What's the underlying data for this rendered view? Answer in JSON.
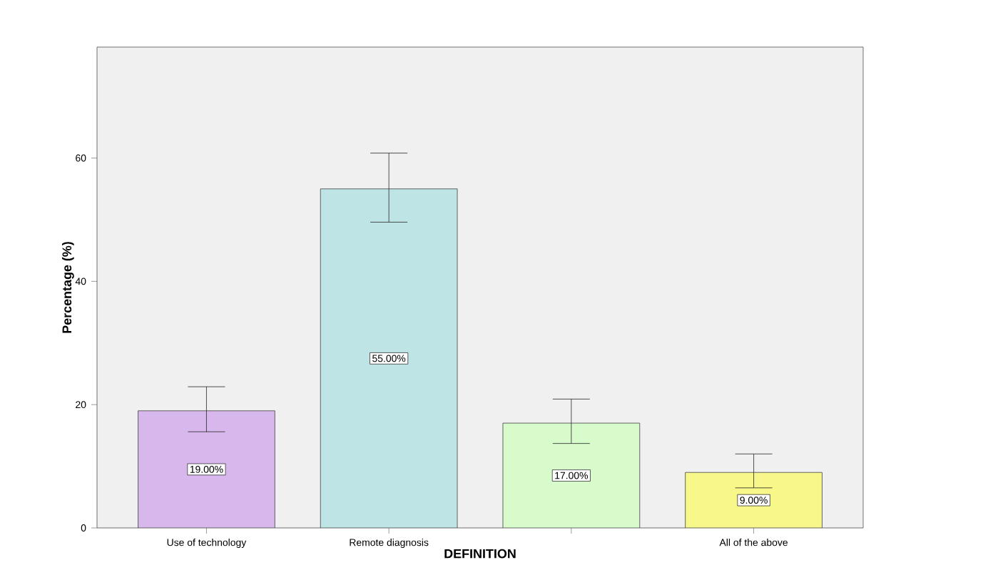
{
  "chart_data": {
    "type": "bar",
    "xlabel": "DEFINITION",
    "ylabel": "Percentage (%)",
    "categories": [
      "Use of technology",
      "Remote diagnosis",
      null,
      "All of the above"
    ],
    "values": [
      19,
      55,
      17,
      9
    ],
    "colors": [
      "#d8b8ec",
      "#bfe4e6",
      "#d8fbcc",
      "#f7f78a"
    ],
    "errors": [
      [
        15.6,
        22.9
      ],
      [
        49.6,
        60.8
      ],
      [
        13.7,
        20.9
      ],
      [
        6.5,
        12.0
      ]
    ],
    "value_labels": [
      "19.00%",
      "55.00%",
      "17.00%",
      "9.00%"
    ],
    "ylim": [
      0,
      78
    ],
    "yticks": [
      0,
      20,
      40,
      60
    ],
    "grid": false
  }
}
